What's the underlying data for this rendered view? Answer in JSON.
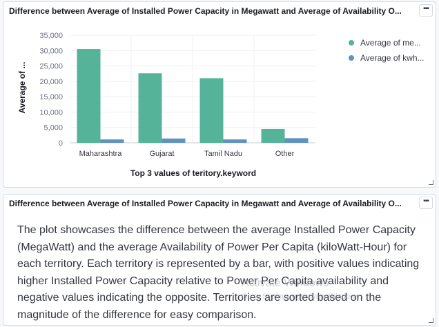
{
  "panels": [
    {
      "title": "Difference between Average of Installed Power Capacity in Megawatt and Average of Availability O...",
      "menu_glyph": "▪▪▪"
    },
    {
      "title": "Difference between Average of Installed Power Capacity in Megawatt and Average of Availability O...",
      "menu_glyph": "▪▪▪",
      "text": "The plot showcases the difference between the average Installed Power Capacity (MegaWatt) and the average Availability of Power Per Capita (kiloWatt-Hour) for each territory. Each territory is represented by a bar, with positive values indicating higher Installed Power Capacity relative to Power Per Capita availability and negative values indicating the opposite. Territories are sorted based on the magnitude of the difference for easy comparison."
    }
  ],
  "chart_data": {
    "type": "bar",
    "categories": [
      "Maharashtra",
      "Gujarat",
      "Tamil Nadu",
      "Other"
    ],
    "series": [
      {
        "name": "Average of me...",
        "color": "#54b399",
        "values": [
          30500,
          22600,
          21000,
          4500
        ]
      },
      {
        "name": "Average of kwh...",
        "color": "#6092c0",
        "values": [
          1100,
          1400,
          1100,
          1500
        ]
      }
    ],
    "xlabel": "Top 3 values of teritory.keyword",
    "ylabel": "Average of ...",
    "ylim": [
      0,
      35000
    ],
    "yticks": [
      "35,000",
      "30,000",
      "25,000",
      "20,000",
      "15,000",
      "10,000",
      "5,000",
      "0"
    ],
    "grid": true,
    "legend_position": "top-right"
  },
  "watermark": {
    "title": "Activate Windows",
    "subtitle": "Go to Settings to activate Windows."
  }
}
